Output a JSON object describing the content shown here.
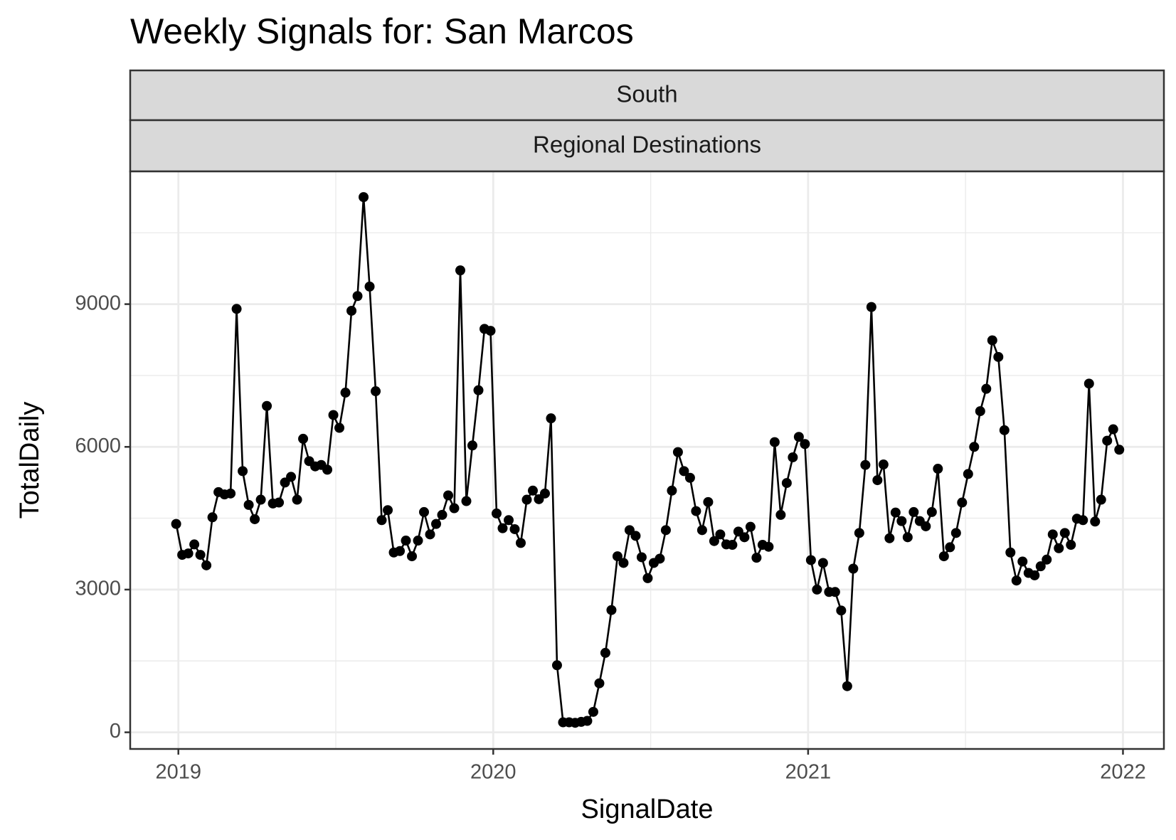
{
  "chart_data": {
    "type": "line",
    "title": "Weekly Signals for: San Marcos",
    "facets": [
      "South",
      "Regional Destinations"
    ],
    "x_label": "SignalDate",
    "y_label": "TotalDaily",
    "x": [
      2018.993,
      2019.0122,
      2019.0314,
      2019.0506,
      2019.0698,
      2019.089,
      2019.1082,
      2019.1274,
      2019.1466,
      2019.1658,
      2019.185,
      2019.2042,
      2019.2234,
      2019.2426,
      2019.2618,
      2019.281,
      2019.3002,
      2019.3194,
      2019.3386,
      2019.3578,
      2019.377,
      2019.3962,
      2019.4154,
      2019.4346,
      2019.4538,
      2019.473,
      2019.4922,
      2019.5114,
      2019.5306,
      2019.5498,
      2019.569,
      2019.5882,
      2019.6074,
      2019.6266,
      2019.6458,
      2019.665,
      2019.6842,
      2019.7034,
      2019.7226,
      2019.7418,
      2019.761,
      2019.7802,
      2019.7994,
      2019.8186,
      2019.8378,
      2019.857,
      2019.8762,
      2019.8954,
      2019.9146,
      2019.9338,
      2019.953,
      2019.9722,
      2019.9914,
      2020.0106,
      2020.0298,
      2020.049,
      2020.0682,
      2020.0874,
      2020.1066,
      2020.1258,
      2020.145,
      2020.1642,
      2020.1834,
      2020.2026,
      2020.2218,
      2020.241,
      2020.2602,
      2020.2794,
      2020.2986,
      2020.3178,
      2020.337,
      2020.3562,
      2020.3754,
      2020.3946,
      2020.4138,
      2020.433,
      2020.4522,
      2020.4714,
      2020.4906,
      2020.5098,
      2020.529,
      2020.5482,
      2020.5674,
      2020.5866,
      2020.6058,
      2020.625,
      2020.6442,
      2020.6634,
      2020.6826,
      2020.7018,
      2020.721,
      2020.7402,
      2020.7594,
      2020.7786,
      2020.7978,
      2020.817,
      2020.8362,
      2020.8554,
      2020.8746,
      2020.8938,
      2020.913,
      2020.9322,
      2020.9514,
      2020.9706,
      2020.9898,
      2021.009,
      2021.0282,
      2021.0474,
      2021.0666,
      2021.0858,
      2021.105,
      2021.1242,
      2021.1434,
      2021.1626,
      2021.1818,
      2021.201,
      2021.2202,
      2021.2394,
      2021.2586,
      2021.2778,
      2021.297,
      2021.3162,
      2021.3354,
      2021.3546,
      2021.3738,
      2021.393,
      2021.4122,
      2021.4314,
      2021.4506,
      2021.4698,
      2021.489,
      2021.5082,
      2021.5274,
      2021.5466,
      2021.5658,
      2021.585,
      2021.6042,
      2021.6234,
      2021.6426,
      2021.6618,
      2021.681,
      2021.7002,
      2021.7194,
      2021.7386,
      2021.7578,
      2021.777,
      2021.7962,
      2021.8154,
      2021.8346,
      2021.8538,
      2021.873,
      2021.8922,
      2021.9114,
      2021.9306,
      2021.9498,
      2021.969,
      2021.9882
    ],
    "series": [
      {
        "color": "#000000",
        "values": [
          4380,
          3730,
          3760,
          3950,
          3730,
          3510,
          4520,
          5050,
          5000,
          5020,
          8900,
          5490,
          4780,
          4480,
          4890,
          6860,
          4810,
          4830,
          5250,
          5370,
          4890,
          6170,
          5700,
          5590,
          5620,
          5520,
          6670,
          6400,
          7140,
          8860,
          9170,
          11250,
          9370,
          7170,
          4460,
          4670,
          3780,
          3810,
          4030,
          3700,
          4030,
          4630,
          4160,
          4380,
          4570,
          4980,
          4710,
          9710,
          4860,
          6030,
          7190,
          8480,
          8440,
          4600,
          4290,
          4460,
          4270,
          3980,
          4890,
          5080,
          4900,
          5020,
          6600,
          1410,
          210,
          210,
          200,
          220,
          240,
          430,
          1030,
          1670,
          2570,
          3700,
          3560,
          4250,
          4130,
          3680,
          3240,
          3560,
          3650,
          4250,
          5080,
          5890,
          5490,
          5350,
          4650,
          4250,
          4840,
          4020,
          4160,
          3950,
          3940,
          4220,
          4100,
          4320,
          3670,
          3940,
          3900,
          6100,
          4570,
          5240,
          5780,
          6210,
          6060,
          3620,
          3000,
          3560,
          2950,
          2950,
          2560,
          970,
          3440,
          4190,
          5620,
          8940,
          5300,
          5630,
          4080,
          4620,
          4440,
          4100,
          4630,
          4440,
          4330,
          4630,
          5540,
          3700,
          3890,
          4190,
          4830,
          5430,
          6000,
          6750,
          7220,
          8240,
          7890,
          6350,
          3780,
          3190,
          3590,
          3350,
          3300,
          3490,
          3630,
          4160,
          3870,
          4190,
          3940,
          4490,
          4460,
          7330,
          4430,
          4890,
          6130,
          6370,
          5940
        ]
      }
    ],
    "xlim": [
      2018.847,
      2022.13
    ],
    "xticks": [
      2019,
      2020,
      2021,
      2022
    ],
    "xminor": [
      2019.5,
      2020.5,
      2021.5
    ],
    "ylim": [
      -350,
      11790
    ],
    "yticks": [
      0,
      3000,
      6000,
      9000
    ],
    "yminor": [
      1500,
      4500,
      7500,
      10500
    ],
    "grid": true,
    "markers": true
  }
}
